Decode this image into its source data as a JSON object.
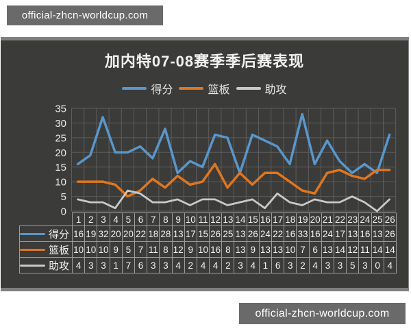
{
  "watermarks": {
    "top": "official-zhcn-worldcup.com",
    "bottom": "official-zhcn-worldcup.com"
  },
  "chart_data": {
    "type": "line",
    "title": "加内特07-08赛季季后赛表现",
    "categories": [
      1,
      2,
      3,
      4,
      5,
      6,
      7,
      8,
      9,
      10,
      11,
      12,
      13,
      14,
      15,
      16,
      17,
      18,
      19,
      20,
      21,
      22,
      23,
      24,
      25,
      26
    ],
    "series": [
      {
        "key": "points",
        "name": "得分",
        "color": "#5897cb",
        "values": [
          16,
          19,
          32,
          20,
          20,
          22,
          18,
          28,
          13,
          17,
          15,
          26,
          25,
          13,
          26,
          24,
          22,
          16,
          33,
          16,
          24,
          17,
          13,
          16,
          13,
          26
        ]
      },
      {
        "key": "rebounds",
        "name": "篮板",
        "color": "#e1761d",
        "values": [
          10,
          10,
          10,
          9,
          5,
          7,
          11,
          8,
          12,
          9,
          10,
          16,
          8,
          13,
          9,
          13,
          13,
          10,
          7,
          6,
          13,
          14,
          12,
          11,
          14,
          14
        ]
      },
      {
        "key": "assists",
        "name": "助攻",
        "color": "#c9c9c9",
        "values": [
          4,
          3,
          3,
          1,
          7,
          6,
          3,
          3,
          4,
          2,
          4,
          4,
          2,
          3,
          4,
          1,
          6,
          3,
          2,
          4,
          3,
          3,
          5,
          3,
          0,
          4
        ]
      }
    ],
    "ylim": [
      0,
      35
    ],
    "ytick_step": 5,
    "yticks": [
      0,
      5,
      10,
      15,
      20,
      25,
      30,
      35
    ],
    "grid": true,
    "legend_position": "top",
    "show_data_table": true,
    "xlabel": "",
    "ylabel": ""
  },
  "colors": {
    "panel_bg": "#3b3b3a",
    "panel_border": "#7f7f7f",
    "grid": "#5d5d5d",
    "axis_text": "#eaeaea",
    "table_border": "#9e9e9e",
    "watermark_bg": "#6a6a6a",
    "watermark_text": "#ffffff"
  }
}
